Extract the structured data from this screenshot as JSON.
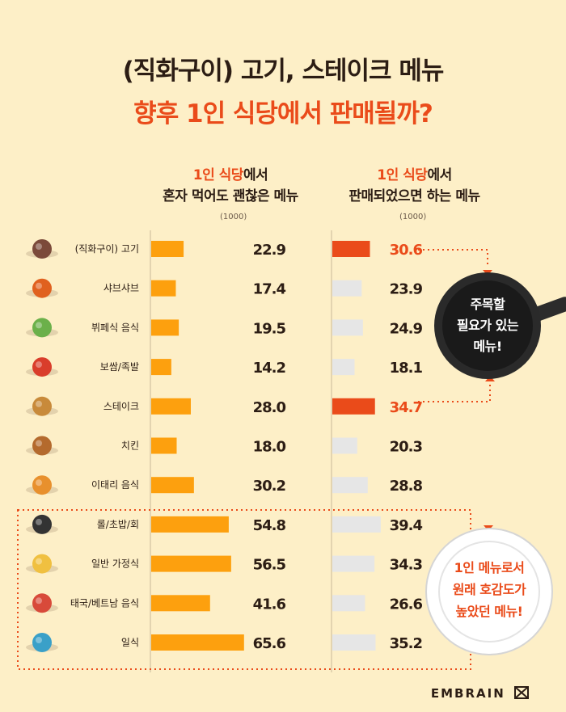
{
  "title": {
    "line1": "(직화구이) 고기, 스테이크 메뉴",
    "line2": "향후 1인 식당에서 판매될까?"
  },
  "left_header": {
    "highlight": "1인 식당",
    "rest": "에서",
    "line2": "혼자 먹어도 괜찮은 메뉴",
    "unit": "(1000)"
  },
  "right_header": {
    "highlight": "1인 식당",
    "rest": "에서",
    "line2": "판매되었으면 하는 메뉴",
    "unit": "(1000)"
  },
  "callouts": {
    "top": {
      "l1": "주목할",
      "l2": "필요가 있는",
      "l3": "메뉴!"
    },
    "bottom": {
      "l1": "1인 메뉴로서",
      "l2": "원래 호감도가",
      "l3": "높았던 메뉴!"
    }
  },
  "brand": "EMBRAIN",
  "colors": {
    "orange": "#fda00e",
    "red": "#ea4b1a",
    "gray": "#e6e6e6",
    "dark": "#2c1d14"
  },
  "chart_data": {
    "type": "bar",
    "categories": [
      "(직화구이) 고기",
      "샤브샤브",
      "뷔페식 음식",
      "보쌈/족발",
      "스테이크",
      "치킨",
      "이태리 음식",
      "롤/초밥/회",
      "일반 가정식",
      "태국/베트남 음식",
      "일식"
    ],
    "icons": [
      "meat-icon",
      "pot-icon",
      "buffet-icon",
      "ham-icon",
      "steak-icon",
      "chicken-icon",
      "pizza-icon",
      "sushi-icon",
      "homemeal-icon",
      "noodle-icon",
      "fish-icon"
    ],
    "series": [
      {
        "values": [
          22.9,
          17.4,
          19.5,
          14.2,
          28.0,
          18.0,
          30.2,
          54.8,
          56.5,
          41.6,
          65.6
        ]
      },
      {
        "values": [
          30.6,
          23.9,
          24.9,
          18.1,
          34.7,
          20.3,
          28.8,
          39.4,
          34.3,
          26.6,
          35.2
        ]
      }
    ],
    "labels_left": [
      "22.9",
      "17.4",
      "19.5",
      "14.2",
      "28.0",
      "18.0",
      "30.2",
      "54.8",
      "56.5",
      "41.6",
      "65.6"
    ],
    "labels_right": [
      "30.6",
      "23.9",
      "24.9",
      "18.1",
      "34.7",
      "20.3",
      "28.8",
      "39.4",
      "34.3",
      "26.6",
      "35.2"
    ],
    "highlight_right": [
      true,
      false,
      false,
      false,
      true,
      false,
      false,
      false,
      false,
      false,
      false
    ]
  }
}
